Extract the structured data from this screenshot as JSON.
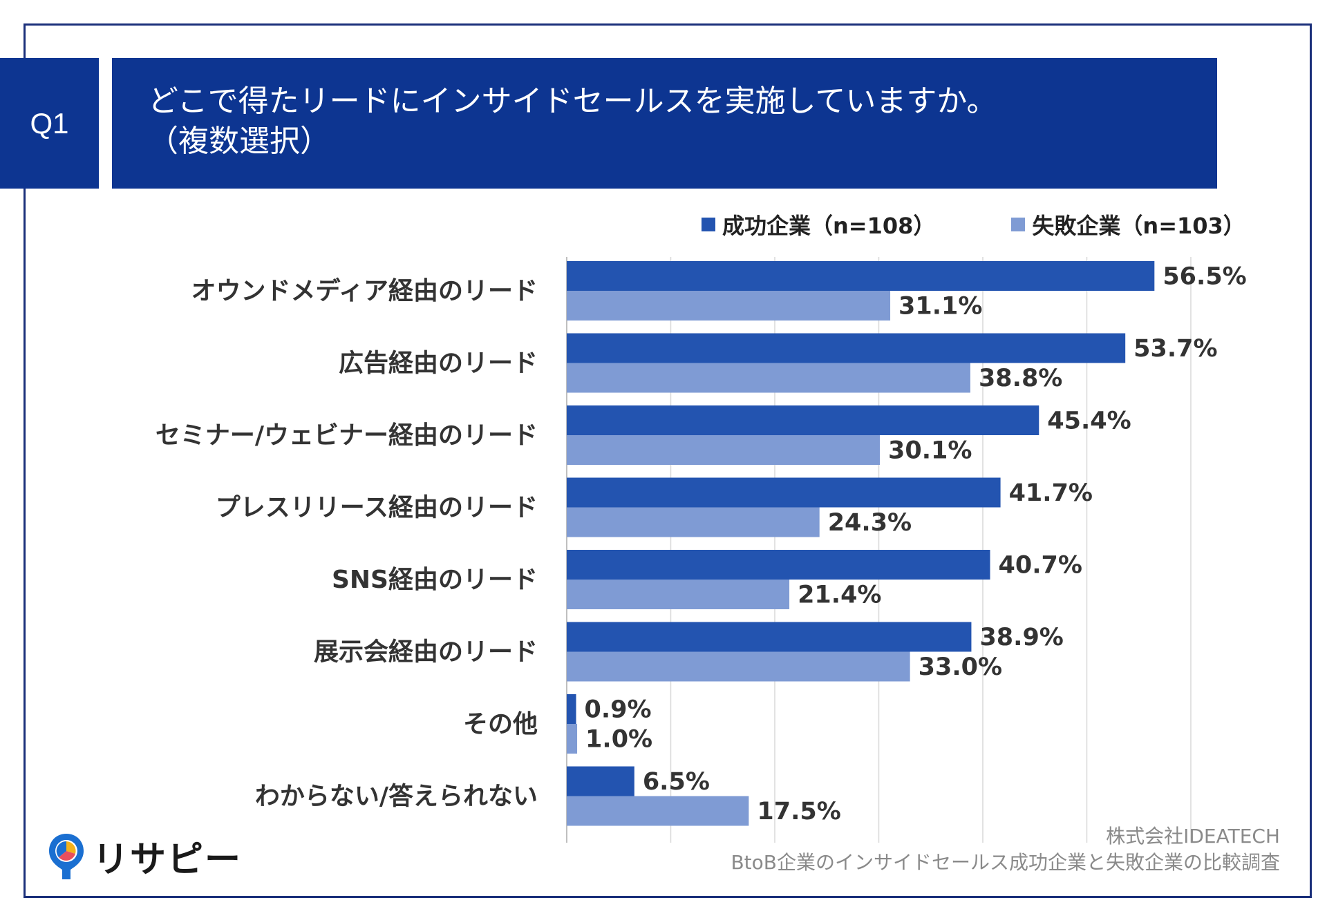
{
  "question": {
    "number": "Q1",
    "title_line1": "どこで得たリードにインサイドセールスを実施していますか。",
    "title_line2": "（複数選択）"
  },
  "colors": {
    "header_bg": "#0d3591",
    "success": "#2354b0",
    "failure": "#7f9bd4"
  },
  "chart_data": {
    "type": "bar",
    "orientation": "horizontal",
    "categories": [
      "オウンドメディア経由のリード",
      "広告経由のリード",
      "セミナー/ウェビナー経由のリード",
      "プレスリリース経由のリード",
      "SNS経由のリード",
      "展示会経由のリード",
      "その他",
      "わからない/答えられない"
    ],
    "series": [
      {
        "name": "成功企業（n=108）",
        "values": [
          56.5,
          53.7,
          45.4,
          41.7,
          40.7,
          38.9,
          0.9,
          6.5
        ],
        "labels": [
          "56.5%",
          "53.7%",
          "45.4%",
          "41.7%",
          "40.7%",
          "38.9%",
          "0.9%",
          "6.5%"
        ]
      },
      {
        "name": "失敗企業（n=103）",
        "values": [
          31.1,
          38.8,
          30.1,
          24.3,
          21.4,
          33.0,
          1.0,
          17.5
        ],
        "labels": [
          "31.1%",
          "38.8%",
          "30.1%",
          "24.3%",
          "21.4%",
          "33.0%",
          "1.0%",
          "17.5%"
        ]
      }
    ],
    "xlim": [
      0,
      60
    ],
    "grid": true,
    "legend": "top-right"
  },
  "source": {
    "line1": "株式会社IDEATECH",
    "line2": "BtoB企業のインサイドセールス成功企業と失敗企業の比較調査"
  },
  "logo": {
    "text": "リサピー"
  }
}
